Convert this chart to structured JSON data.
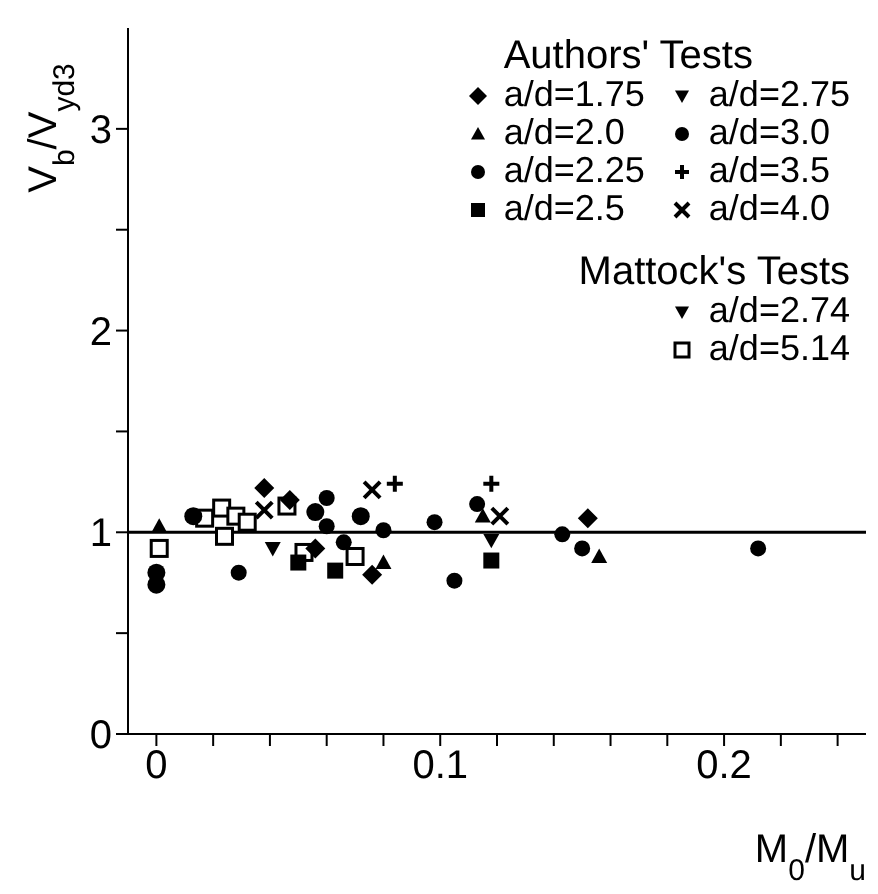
{
  "chart_data": {
    "type": "scatter",
    "xlabel": "M$_{0}$/M$_{u}$",
    "ylabel": "V$_{b}$/V$_{yd3}$",
    "legend_title": "Authors' Tests",
    "annotations": [
      "Mattock's Tests"
    ],
    "xlim": [
      -0.01,
      0.25
    ],
    "ylim": [
      0,
      3.5
    ],
    "xticks": [
      0,
      {
        "value": 0.02,
        "label": null
      },
      {
        "value": 0.04,
        "label": null
      },
      {
        "value": 0.06,
        "label": null
      },
      {
        "value": 0.08,
        "label": null
      },
      0.1,
      {
        "value": 0.12,
        "label": null
      },
      {
        "value": 0.14,
        "label": null
      },
      {
        "value": 0.16,
        "label": null
      },
      {
        "value": 0.18,
        "label": null
      },
      0.2,
      {
        "value": 0.22,
        "label": null
      },
      {
        "value": 0.24,
        "label": null
      }
    ],
    "yticks": [
      0,
      {
        "value": 0.5,
        "label": null
      },
      1,
      {
        "value": 1.5,
        "label": null
      },
      2,
      {
        "value": 2.5,
        "label": null
      },
      3
    ],
    "ref_lines": [
      {
        "axis": "y",
        "value": 1,
        "color": "#000000",
        "line_style": "solid"
      }
    ],
    "legend": "top right",
    "series": [
      {
        "name": "a/d=1.75",
        "color": "#000000",
        "marker": "diamond",
        "x": [
          0.038,
          0.047,
          0.056,
          0.076,
          0.152
        ],
        "values": [
          1.22,
          1.16,
          0.92,
          0.79,
          1.07
        ]
      },
      {
        "name": "a/d=2.0",
        "color": "#000000",
        "marker": "triangle",
        "x": [
          0.001,
          0.08,
          0.115,
          0.156
        ],
        "values": [
          1.03,
          0.85,
          1.08,
          0.88
        ]
      },
      {
        "name": "a/d=2.25",
        "color": "#000000",
        "marker": "circle",
        "x": [
          0.0,
          0.0,
          0.013,
          0.056,
          0.072
        ],
        "values": [
          0.74,
          0.8,
          1.08,
          1.1,
          1.08
        ]
      },
      {
        "name": "a/d=2.5",
        "color": "#000000",
        "marker": "square",
        "x": [
          0.05,
          0.063,
          0.118
        ],
        "values": [
          0.85,
          0.81,
          0.86
        ]
      },
      {
        "name": "a/d=2.75",
        "color": "#000000",
        "marker": "triangle-down",
        "x": [
          0.118
        ],
        "values": [
          0.96
        ]
      },
      {
        "name": "a/d=3.0",
        "color": "#000000",
        "marker": "circle",
        "x": [
          0.029,
          0.06,
          0.06,
          0.066,
          0.08,
          0.098,
          0.105,
          0.113,
          0.143,
          0.15,
          0.212
        ],
        "values": [
          0.8,
          1.17,
          1.03,
          0.95,
          1.01,
          1.05,
          0.76,
          1.14,
          0.99,
          0.92,
          0.92
        ]
      },
      {
        "name": "a/d=3.5",
        "color": "#000000",
        "marker": "cross",
        "x": [
          0.084,
          0.118
        ],
        "values": [
          1.24,
          1.24
        ]
      },
      {
        "name": "a/d=4.0",
        "color": "#000000",
        "marker": "x",
        "x": [
          0.038,
          0.076,
          0.121
        ],
        "values": [
          1.11,
          1.21,
          1.08
        ]
      },
      {
        "name": "a/d=2.74",
        "color": "#000000",
        "marker": "triangle-down",
        "x": [
          0.041
        ],
        "values": [
          0.92
        ]
      },
      {
        "name": "a/d=5.14",
        "color": "#000000",
        "marker": "square-open",
        "x": [
          0.001,
          0.017,
          0.023,
          0.024,
          0.028,
          0.032,
          0.046,
          0.052,
          0.07
        ],
        "values": [
          0.92,
          1.07,
          1.12,
          0.98,
          1.08,
          1.05,
          1.13,
          0.9,
          0.88
        ]
      }
    ]
  }
}
